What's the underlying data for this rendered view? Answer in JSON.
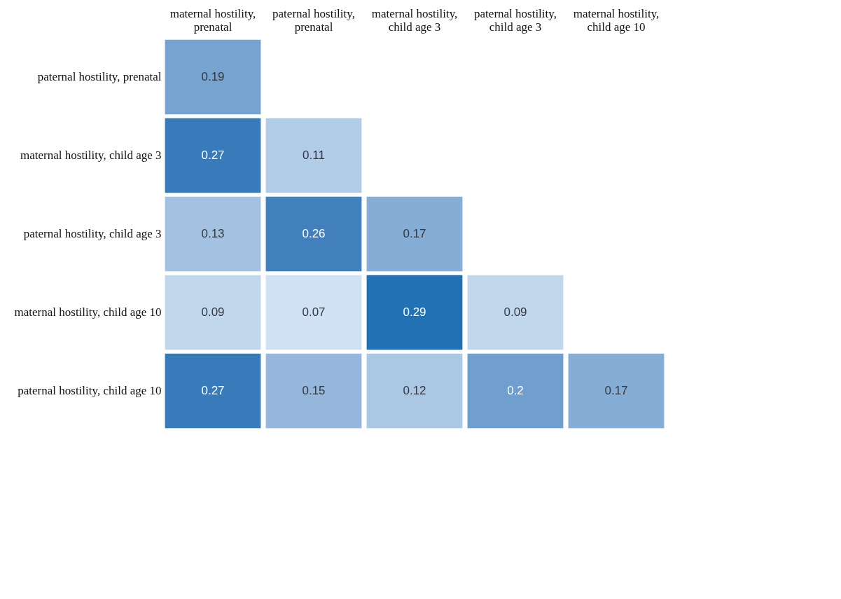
{
  "chart_data": {
    "type": "heatmap",
    "categories": [
      "maternal hostility, prenatal",
      "paternal hostility, prenatal",
      "maternal hostility, child age 3",
      "paternal hostility, child age 3",
      "maternal hostility, child age 10"
    ],
    "y_categories": [
      "paternal hostility, prenatal",
      "maternal hostility, child age 3",
      "paternal hostility, child age 3",
      "maternal hostility, child age 10",
      "paternal hostility, child age 10"
    ],
    "cells": [
      [
        0.19,
        null,
        null,
        null,
        null
      ],
      [
        0.27,
        0.11,
        null,
        null,
        null
      ],
      [
        0.13,
        0.26,
        0.17,
        null,
        null
      ],
      [
        0.09,
        0.07,
        0.29,
        0.09,
        null
      ],
      [
        0.27,
        0.15,
        0.12,
        0.2,
        0.17
      ]
    ],
    "data_labels": true
  }
}
